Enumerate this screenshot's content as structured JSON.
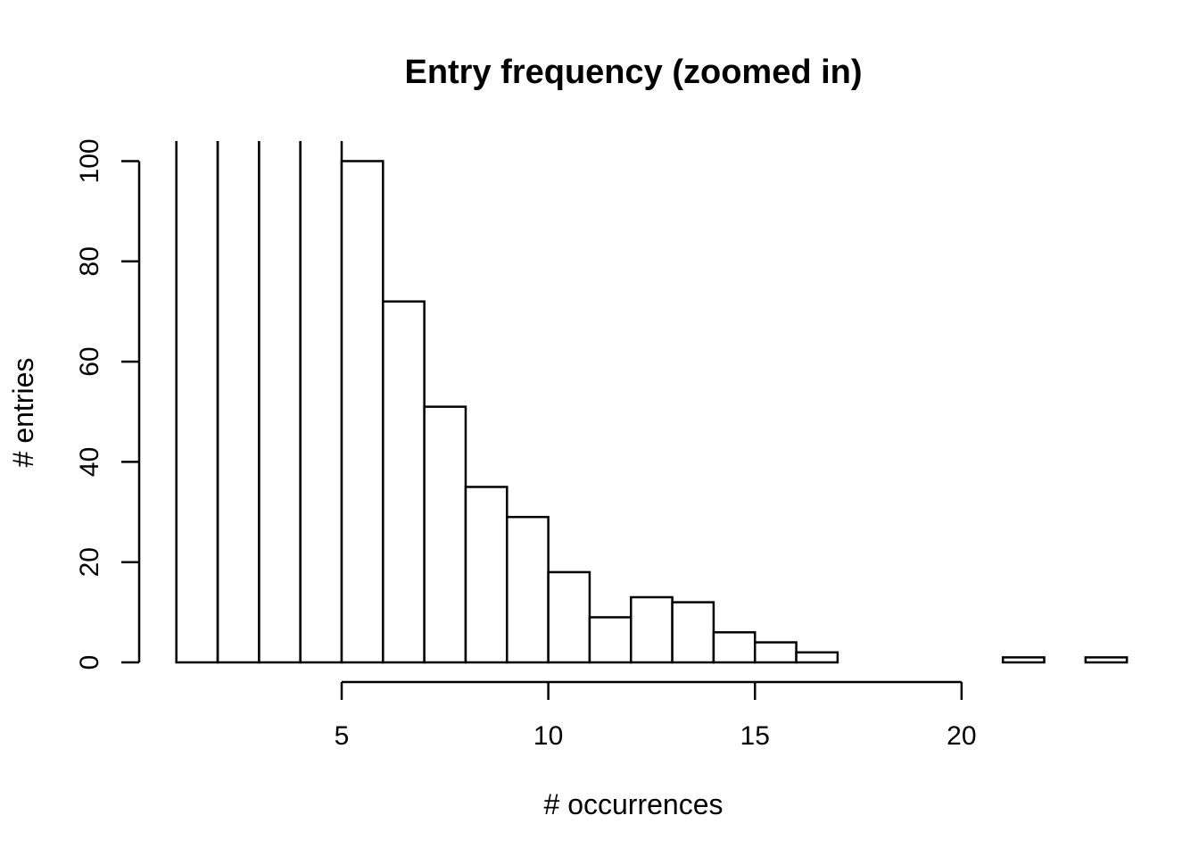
{
  "chart_data": {
    "type": "bar",
    "title": "Entry frequency (zoomed in)",
    "xlabel": "# occurrences",
    "ylabel": "# entries",
    "bin_edges": [
      1,
      2,
      3,
      4,
      5,
      6,
      7,
      8,
      9,
      10,
      11,
      12,
      13,
      14,
      15,
      16,
      17,
      18,
      19,
      20,
      21,
      22,
      23
    ],
    "values": [
      104,
      104,
      104,
      104,
      100,
      72,
      51,
      35,
      29,
      18,
      9,
      13,
      12,
      6,
      4,
      2,
      0,
      0,
      0,
      0,
      1,
      0,
      1
    ],
    "clipped_above": 104,
    "xlim": [
      0.1,
      23.5
    ],
    "ylim": [
      0,
      104
    ],
    "x_ticks": [
      5,
      10,
      15,
      20
    ],
    "y_ticks": [
      0,
      20,
      40,
      60,
      80,
      100
    ],
    "grid": false,
    "legend": "none",
    "colors": {
      "bar_fill": "#ffffff",
      "stroke": "#000000"
    }
  }
}
